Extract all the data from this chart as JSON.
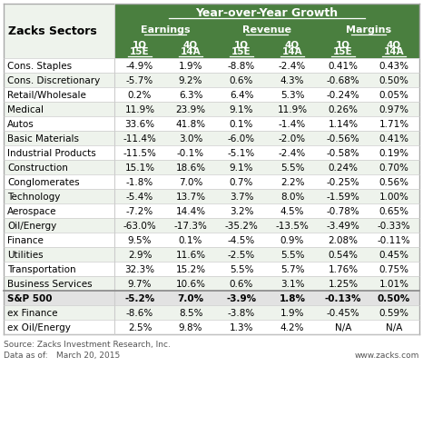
{
  "title": "Year-over-Year Growth",
  "col_groups": [
    "Earnings",
    "Revenue",
    "Margins"
  ],
  "col_subheaders": [
    "1Q\n15E",
    "4Q\n14A",
    "1Q\n15E",
    "4Q\n14A",
    "1Q\n15E",
    "4Q\n14A"
  ],
  "sectors": [
    "Cons. Staples",
    "Cons. Discretionary",
    "Retail/Wholesale",
    "Medical",
    "Autos",
    "Basic Materials",
    "Industrial Products",
    "Construction",
    "Conglomerates",
    "Technology",
    "Aerospace",
    "Oil/Energy",
    "Finance",
    "Utilities",
    "Transportation",
    "Business Services",
    "S&P 500",
    "ex Finance",
    "ex Oil/Energy"
  ],
  "data": [
    [
      "-4.9%",
      "1.9%",
      "-8.8%",
      "-2.4%",
      "0.41%",
      "0.43%"
    ],
    [
      "-5.7%",
      "9.2%",
      "0.6%",
      "4.3%",
      "-0.68%",
      "0.50%"
    ],
    [
      "0.2%",
      "6.3%",
      "6.4%",
      "5.3%",
      "-0.24%",
      "0.05%"
    ],
    [
      "11.9%",
      "23.9%",
      "9.1%",
      "11.9%",
      "0.26%",
      "0.97%"
    ],
    [
      "33.6%",
      "41.8%",
      "0.1%",
      "-1.4%",
      "1.14%",
      "1.71%"
    ],
    [
      "-11.4%",
      "3.0%",
      "-6.0%",
      "-2.0%",
      "-0.56%",
      "0.41%"
    ],
    [
      "-11.5%",
      "-0.1%",
      "-5.1%",
      "-2.4%",
      "-0.58%",
      "0.19%"
    ],
    [
      "15.1%",
      "18.6%",
      "9.1%",
      "5.5%",
      "0.24%",
      "0.70%"
    ],
    [
      "-1.8%",
      "7.0%",
      "0.7%",
      "2.2%",
      "-0.25%",
      "0.56%"
    ],
    [
      "-5.4%",
      "13.7%",
      "3.7%",
      "8.0%",
      "-1.59%",
      "1.00%"
    ],
    [
      "-7.2%",
      "14.4%",
      "3.2%",
      "4.5%",
      "-0.78%",
      "0.65%"
    ],
    [
      "-63.0%",
      "-17.3%",
      "-35.2%",
      "-13.5%",
      "-3.49%",
      "-0.33%"
    ],
    [
      "9.5%",
      "0.1%",
      "-4.5%",
      "0.9%",
      "2.08%",
      "-0.11%"
    ],
    [
      "2.9%",
      "11.6%",
      "-2.5%",
      "5.5%",
      "0.54%",
      "0.45%"
    ],
    [
      "32.3%",
      "15.2%",
      "5.5%",
      "5.7%",
      "1.76%",
      "0.75%"
    ],
    [
      "9.7%",
      "10.6%",
      "0.6%",
      "3.1%",
      "1.25%",
      "1.01%"
    ],
    [
      "-5.2%",
      "7.0%",
      "-3.9%",
      "1.8%",
      "-0.13%",
      "0.50%"
    ],
    [
      "-8.6%",
      "8.5%",
      "-3.8%",
      "1.9%",
      "-0.45%",
      "0.59%"
    ],
    [
      "2.5%",
      "9.8%",
      "1.3%",
      "4.2%",
      "N/A",
      "N/A"
    ]
  ],
  "bold_rows": [
    16
  ],
  "header_bg": "#4a7f3f",
  "header_fg": "#ffffff",
  "row_bg_even": "#eef3ec",
  "row_bg_odd": "#ffffff",
  "sp500_bg": "#e2e2e2",
  "border_color": "#cccccc",
  "source_text": "Source: Zacks Investment Research, Inc.",
  "date_label": "Data as of:",
  "date_value": "March 20, 2015",
  "website": "www.zacks.com",
  "fig_bg": "#ffffff",
  "left_col_header": "Zacks Sectors"
}
